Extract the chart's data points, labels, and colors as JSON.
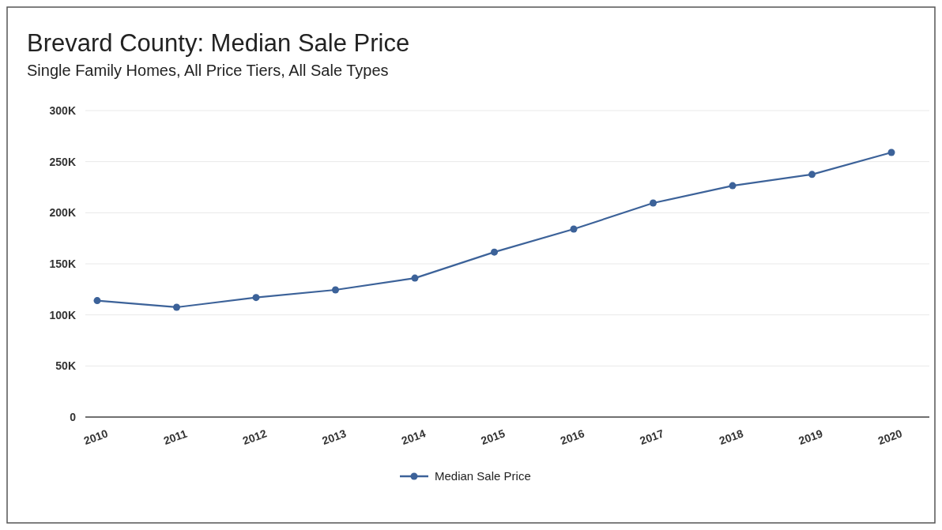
{
  "chart_data": {
    "type": "line",
    "title": "Brevard County: Median Sale Price",
    "subtitle": "Single Family Homes, All Price Tiers, All Sale Types",
    "categories": [
      "2010",
      "2011",
      "2012",
      "2013",
      "2014",
      "2015",
      "2016",
      "2017",
      "2018",
      "2019",
      "2020"
    ],
    "series": [
      {
        "name": "Median Sale Price",
        "color": "#3c6299",
        "values": [
          114000,
          107500,
          117000,
          124500,
          136000,
          161500,
          184000,
          209500,
          226500,
          237500,
          259000
        ]
      }
    ],
    "ylim": [
      0,
      300000
    ],
    "yticks": [
      {
        "value": 0,
        "label": "0"
      },
      {
        "value": 50000,
        "label": "50K"
      },
      {
        "value": 100000,
        "label": "100K"
      },
      {
        "value": 150000,
        "label": "150K"
      },
      {
        "value": 200000,
        "label": "200K"
      },
      {
        "value": 250000,
        "label": "250K"
      },
      {
        "value": 300000,
        "label": "300K"
      }
    ],
    "grid": "y",
    "legend": "bottom",
    "marker": "circle",
    "line_style": "solid"
  }
}
